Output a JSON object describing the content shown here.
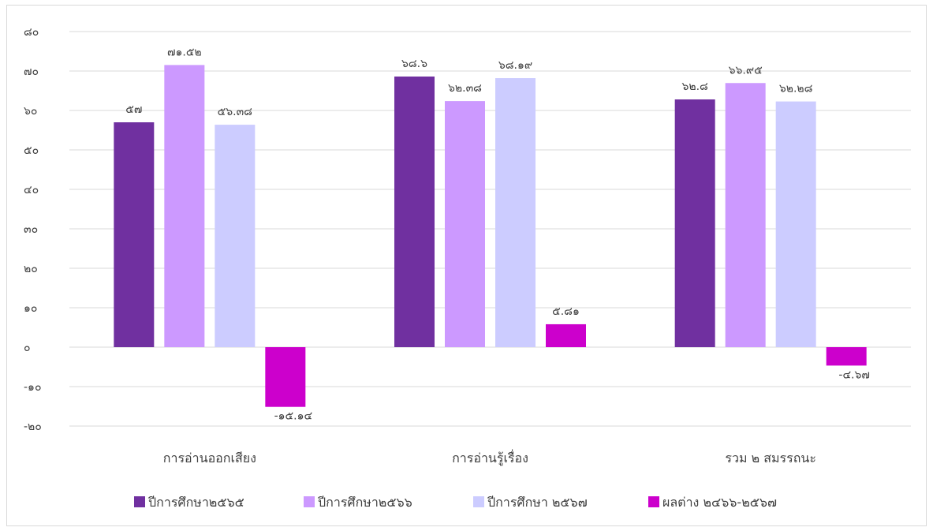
{
  "chart_data": {
    "type": "bar",
    "categories": [
      "การอ่านออกเสียง",
      "การอ่านรู้เรื่อง",
      "รวม ๒ สมรรถนะ"
    ],
    "series": [
      {
        "name": "ปีการศึกษา๒๕๖๕",
        "color": "#7030a0",
        "values": [
          57,
          68.6,
          62.8
        ],
        "labels": [
          "๕๗",
          "๖๘.๖",
          "๖๒.๘"
        ]
      },
      {
        "name": "ปีการศึกษา๒๕๖๖",
        "color": "#cc99ff",
        "values": [
          71.52,
          62.38,
          66.95
        ],
        "labels": [
          "๗๑.๕๒",
          "๖๒.๓๘",
          "๖๖.๙๕"
        ]
      },
      {
        "name": "ปีการศึกษา ๒๕๖๗",
        "color": "#ccccff",
        "values": [
          56.38,
          68.19,
          62.28
        ],
        "labels": [
          "๕๖.๓๘",
          "๖๘.๑๙",
          "๖๒.๒๘"
        ]
      },
      {
        "name": "ผลต่าง ๒๔๖๖-๒๕๖๗",
        "color": "#cc00cc",
        "values": [
          -15.14,
          5.81,
          -4.67
        ],
        "labels": [
          "-๑๕.๑๔",
          "๕.๘๑",
          "-๔.๖๗"
        ]
      }
    ],
    "ylim": [
      -20,
      80
    ],
    "yticks": [
      80,
      70,
      60,
      50,
      40,
      30,
      20,
      10,
      0,
      -10,
      -20
    ],
    "ytick_labels": [
      "๘๐",
      "๗๐",
      "๖๐",
      "๕๐",
      "๔๐",
      "๓๐",
      "๒๐",
      "๑๐",
      "๐",
      "-๑๐",
      "-๒๐"
    ],
    "grid": true,
    "legend_position": "bottom"
  }
}
